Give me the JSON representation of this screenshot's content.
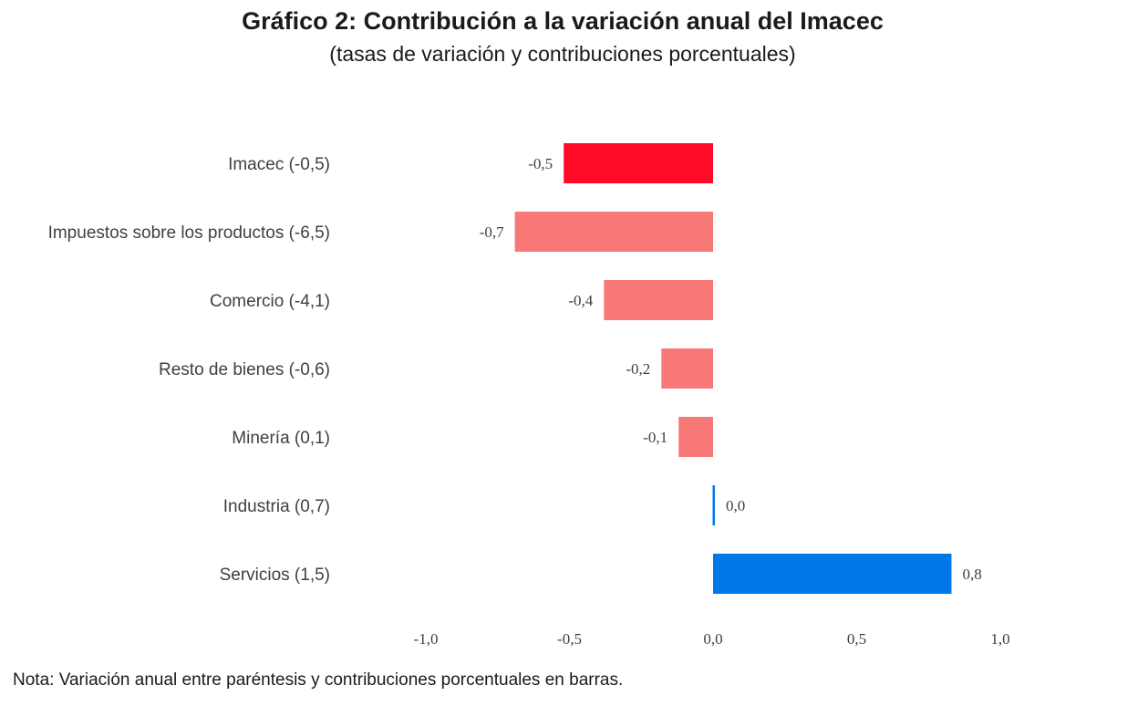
{
  "chart_data": {
    "type": "bar",
    "orientation": "horizontal",
    "title": "Gráfico 2: Contribución a la variación anual del Imacec",
    "subtitle": "(tasas de variación y contribuciones porcentuales)",
    "categories": [
      "Imacec (-0,5)",
      "Impuestos sobre los productos (-6,5)",
      "Comercio (-4,1)",
      "Resto de bienes (-0,6)",
      "Minería (0,1)",
      "Industria (0,7)",
      "Servicios (1,5)"
    ],
    "values": [
      -0.52,
      -0.69,
      -0.38,
      -0.18,
      -0.12,
      0.004,
      0.83
    ],
    "value_labels": [
      "-0,5",
      "-0,7",
      "-0,4",
      "-0,2",
      "-0,1",
      "0,0",
      "0,8"
    ],
    "xlim": [
      -1.0,
      1.0
    ],
    "xticks": [
      -1.0,
      -0.5,
      0.0,
      0.5,
      1.0
    ],
    "xtick_labels": [
      "-1,0",
      "-0,5",
      "0,0",
      "0,5",
      "1,0"
    ],
    "grid": false,
    "colors": {
      "highlight": "#ff0a28",
      "negative": "#f87878",
      "positive": "#0078e8"
    },
    "highlight_index": 0,
    "note": "Nota: Variación anual entre paréntesis y contribuciones porcentuales en barras."
  }
}
